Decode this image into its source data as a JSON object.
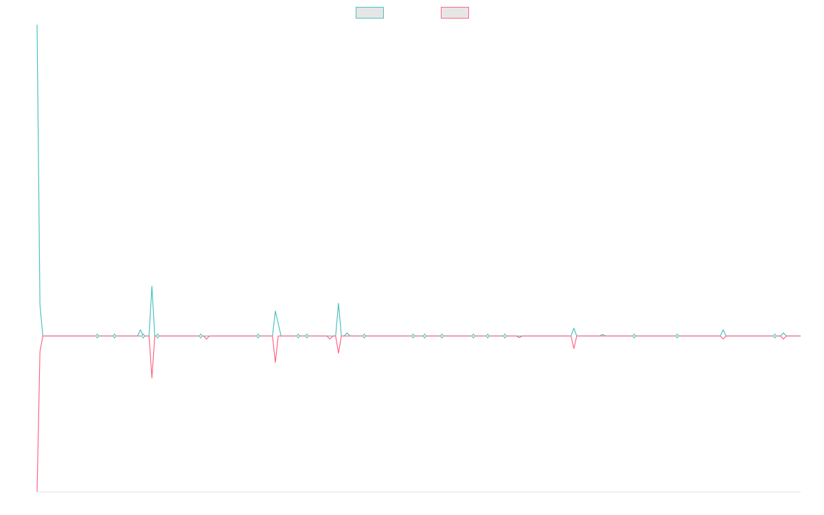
{
  "chart_data": {
    "type": "line",
    "title": "",
    "xlabel": "",
    "ylabel": "",
    "grid": false,
    "legend_placement": "top-center",
    "x_count": 267,
    "ylim": [
      -100,
      200
    ],
    "series": [
      {
        "color": "#4bc0c0",
        "fill": "#e6e6e6",
        "spikes": [
          [
            0,
            200
          ],
          [
            1,
            20
          ],
          [
            2,
            0
          ],
          [
            36,
            4
          ],
          [
            40,
            32
          ],
          [
            41,
            0
          ],
          [
            83,
            16
          ],
          [
            84,
            8
          ],
          [
            85,
            0
          ],
          [
            105,
            21
          ],
          [
            106,
            0
          ],
          [
            108,
            2
          ],
          [
            187,
            5
          ],
          [
            188,
            0
          ],
          [
            197,
            1
          ],
          [
            198,
            0
          ],
          [
            239,
            4
          ],
          [
            240,
            0
          ],
          [
            260,
            2
          ],
          [
            261,
            0
          ]
        ]
      },
      {
        "color": "#ff6384",
        "fill": "#e6e6e6",
        "spikes": [
          [
            0,
            -100
          ],
          [
            1,
            -10
          ],
          [
            2,
            0
          ],
          [
            40,
            -27
          ],
          [
            41,
            0
          ],
          [
            59,
            -2
          ],
          [
            60,
            0
          ],
          [
            83,
            -17
          ],
          [
            84,
            0
          ],
          [
            102,
            -2
          ],
          [
            103,
            0
          ],
          [
            105,
            -11
          ],
          [
            106,
            0
          ],
          [
            168,
            -1
          ],
          [
            169,
            0
          ],
          [
            187,
            -8
          ],
          [
            188,
            0
          ],
          [
            239,
            -2
          ],
          [
            240,
            0
          ],
          [
            260,
            -2
          ],
          [
            261,
            0
          ]
        ]
      }
    ],
    "markers": [
      21,
      27,
      37,
      42,
      57,
      77,
      91,
      94,
      114,
      131,
      135,
      141,
      152,
      157,
      163,
      208,
      223,
      257,
      270
    ]
  }
}
